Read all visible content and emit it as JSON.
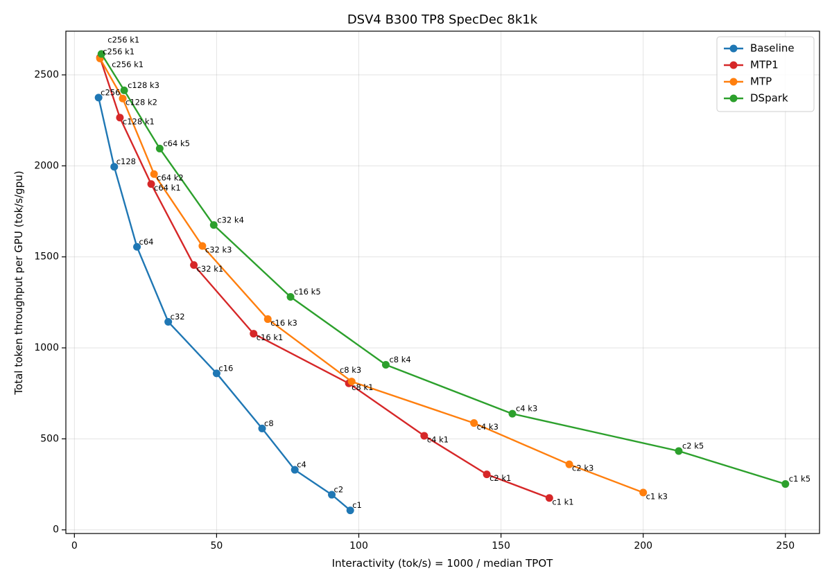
{
  "chart_data": {
    "type": "line",
    "title": "DSV4 B300 TP8 SpecDec 8k1k",
    "xlabel": "Interactivity (tok/s)  =  1000 / median TPOT",
    "ylabel": "Total token throughput per GPU (tok/s/gpu)",
    "xlim": [
      -3,
      262
    ],
    "ylim": [
      -20,
      2740
    ],
    "xticks": [
      0,
      50,
      100,
      150,
      200,
      250
    ],
    "yticks": [
      0,
      500,
      1000,
      1500,
      2000,
      2500
    ],
    "grid": true,
    "legend_position": "top-right",
    "series": [
      {
        "name": "Baseline",
        "color": "#1f77b4",
        "points": [
          {
            "x": 8.5,
            "y": 2375,
            "label": "c256"
          },
          {
            "x": 14.0,
            "y": 1995,
            "label": "c128"
          },
          {
            "x": 22.0,
            "y": 1555,
            "label": "c64"
          },
          {
            "x": 33.0,
            "y": 1143,
            "label": "c32"
          },
          {
            "x": 50.0,
            "y": 860,
            "label": "c16"
          },
          {
            "x": 66.0,
            "y": 557,
            "label": "c8"
          },
          {
            "x": 77.5,
            "y": 330,
            "label": "c4"
          },
          {
            "x": 90.5,
            "y": 193,
            "label": "c2"
          },
          {
            "x": 97.0,
            "y": 107,
            "label": "c1"
          }
        ]
      },
      {
        "name": "MTP1",
        "color": "#d62728",
        "points": [
          {
            "x": 9.0,
            "y": 2595,
            "label": "c256 k1"
          },
          {
            "x": 16.0,
            "y": 2265,
            "label": "c128 k1"
          },
          {
            "x": 27.0,
            "y": 1900,
            "label": "c64 k1"
          },
          {
            "x": 42.0,
            "y": 1455,
            "label": "c32 k1"
          },
          {
            "x": 63.0,
            "y": 1078,
            "label": "c16 k1"
          },
          {
            "x": 96.5,
            "y": 805,
            "label": "c8 k1"
          },
          {
            "x": 123.0,
            "y": 517,
            "label": "c4 k1"
          },
          {
            "x": 145.0,
            "y": 305,
            "label": "c2 k1"
          },
          {
            "x": 167.0,
            "y": 175,
            "label": "c1 k1"
          }
        ]
      },
      {
        "name": "MTP",
        "color": "#ff7f0e",
        "points": [
          {
            "x": 9.0,
            "y": 2590,
            "label": "c256 k1"
          },
          {
            "x": 17.0,
            "y": 2370,
            "label": "c128 k2"
          },
          {
            "x": 28.0,
            "y": 1955,
            "label": "c64 k2"
          },
          {
            "x": 45.0,
            "y": 1560,
            "label": "c32 k3"
          },
          {
            "x": 68.0,
            "y": 1158,
            "label": "c16 k3"
          },
          {
            "x": 97.5,
            "y": 815,
            "label": "c8 k3"
          },
          {
            "x": 140.5,
            "y": 587,
            "label": "c4 k3"
          },
          {
            "x": 174.0,
            "y": 360,
            "label": "c2 k3"
          },
          {
            "x": 200.0,
            "y": 205,
            "label": "c1 k3"
          }
        ]
      },
      {
        "name": "DSpark",
        "color": "#2ca02c",
        "points": [
          {
            "x": 9.5,
            "y": 2615,
            "label": "c256 k1"
          },
          {
            "x": 17.5,
            "y": 2415,
            "label": "c128 k3"
          },
          {
            "x": 30.0,
            "y": 2095,
            "label": "c64 k5"
          },
          {
            "x": 49.0,
            "y": 1675,
            "label": "c32 k4"
          },
          {
            "x": 76.0,
            "y": 1280,
            "label": "c16 k5"
          },
          {
            "x": 109.5,
            "y": 907,
            "label": "c8 k4"
          },
          {
            "x": 154.0,
            "y": 638,
            "label": "c4 k3"
          },
          {
            "x": 212.5,
            "y": 433,
            "label": "c2 k5"
          },
          {
            "x": 250.0,
            "y": 252,
            "label": "c1 k5"
          }
        ]
      }
    ]
  }
}
